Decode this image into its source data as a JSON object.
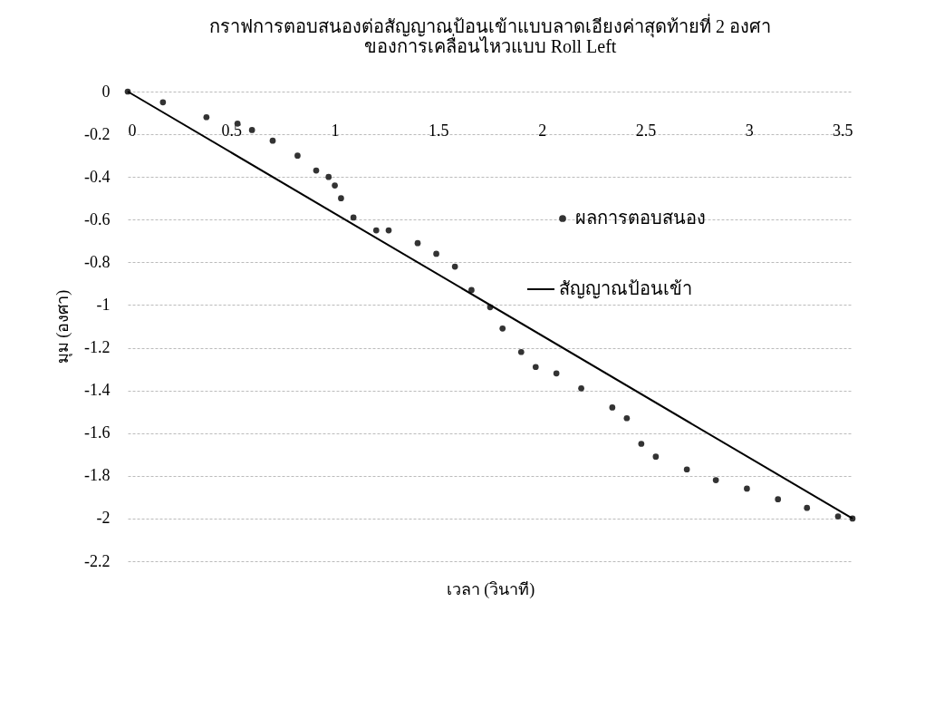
{
  "chart_data": {
    "type": "scatter",
    "title": "กราฟการตอบสนองต่อสัญญาณป้อนเข้าแบบลาดเอียงค่าสุดท้ายที่ 2 องศา\nของการเคลื่อนไหวแบบ Roll Left",
    "xlabel": "เวลา (วินาที)",
    "ylabel": "มุม (องศา)",
    "xlim": [
      0,
      3.5
    ],
    "xticks": [
      0,
      0.5,
      1,
      1.5,
      2,
      2.5,
      3,
      3.5
    ],
    "ylim": [
      -2.2,
      0
    ],
    "yticks": [
      0,
      -0.2,
      -0.4,
      -0.6,
      -0.8,
      -1,
      -1.2,
      -1.4,
      -1.6,
      -1.8,
      -2,
      -2.2
    ],
    "grid": "y",
    "legend": "right",
    "series": [
      {
        "name": "ผลการตอบสนอง",
        "marker": "circle",
        "color": "#333333",
        "x": [
          0,
          0.17,
          0.38,
          0.53,
          0.6,
          0.7,
          0.82,
          0.91,
          0.97,
          1.0,
          1.03,
          1.09,
          1.2,
          1.26,
          1.4,
          1.49,
          1.58,
          1.66,
          1.75,
          1.81,
          1.9,
          1.97,
          2.07,
          2.19,
          2.34,
          2.41,
          2.48,
          2.55,
          2.7,
          2.84,
          2.99,
          3.14,
          3.28,
          3.43,
          3.5
        ],
        "values": [
          0,
          -0.05,
          -0.12,
          -0.15,
          -0.18,
          -0.23,
          -0.3,
          -0.37,
          -0.4,
          -0.44,
          -0.5,
          -0.59,
          -0.65,
          -0.65,
          -0.71,
          -0.76,
          -0.82,
          -0.93,
          -1.01,
          -1.11,
          -1.22,
          -1.29,
          -1.32,
          -1.39,
          -1.48,
          -1.53,
          -1.65,
          -1.71,
          -1.77,
          -1.82,
          -1.86,
          -1.91,
          -1.95,
          -1.99,
          -2.0
        ]
      },
      {
        "name": "สัญญาณป้อนเข้า",
        "type": "line",
        "color": "#000000",
        "line_style": "solid",
        "x": [
          0,
          3.5
        ],
        "values": [
          0,
          -2
        ]
      }
    ]
  }
}
